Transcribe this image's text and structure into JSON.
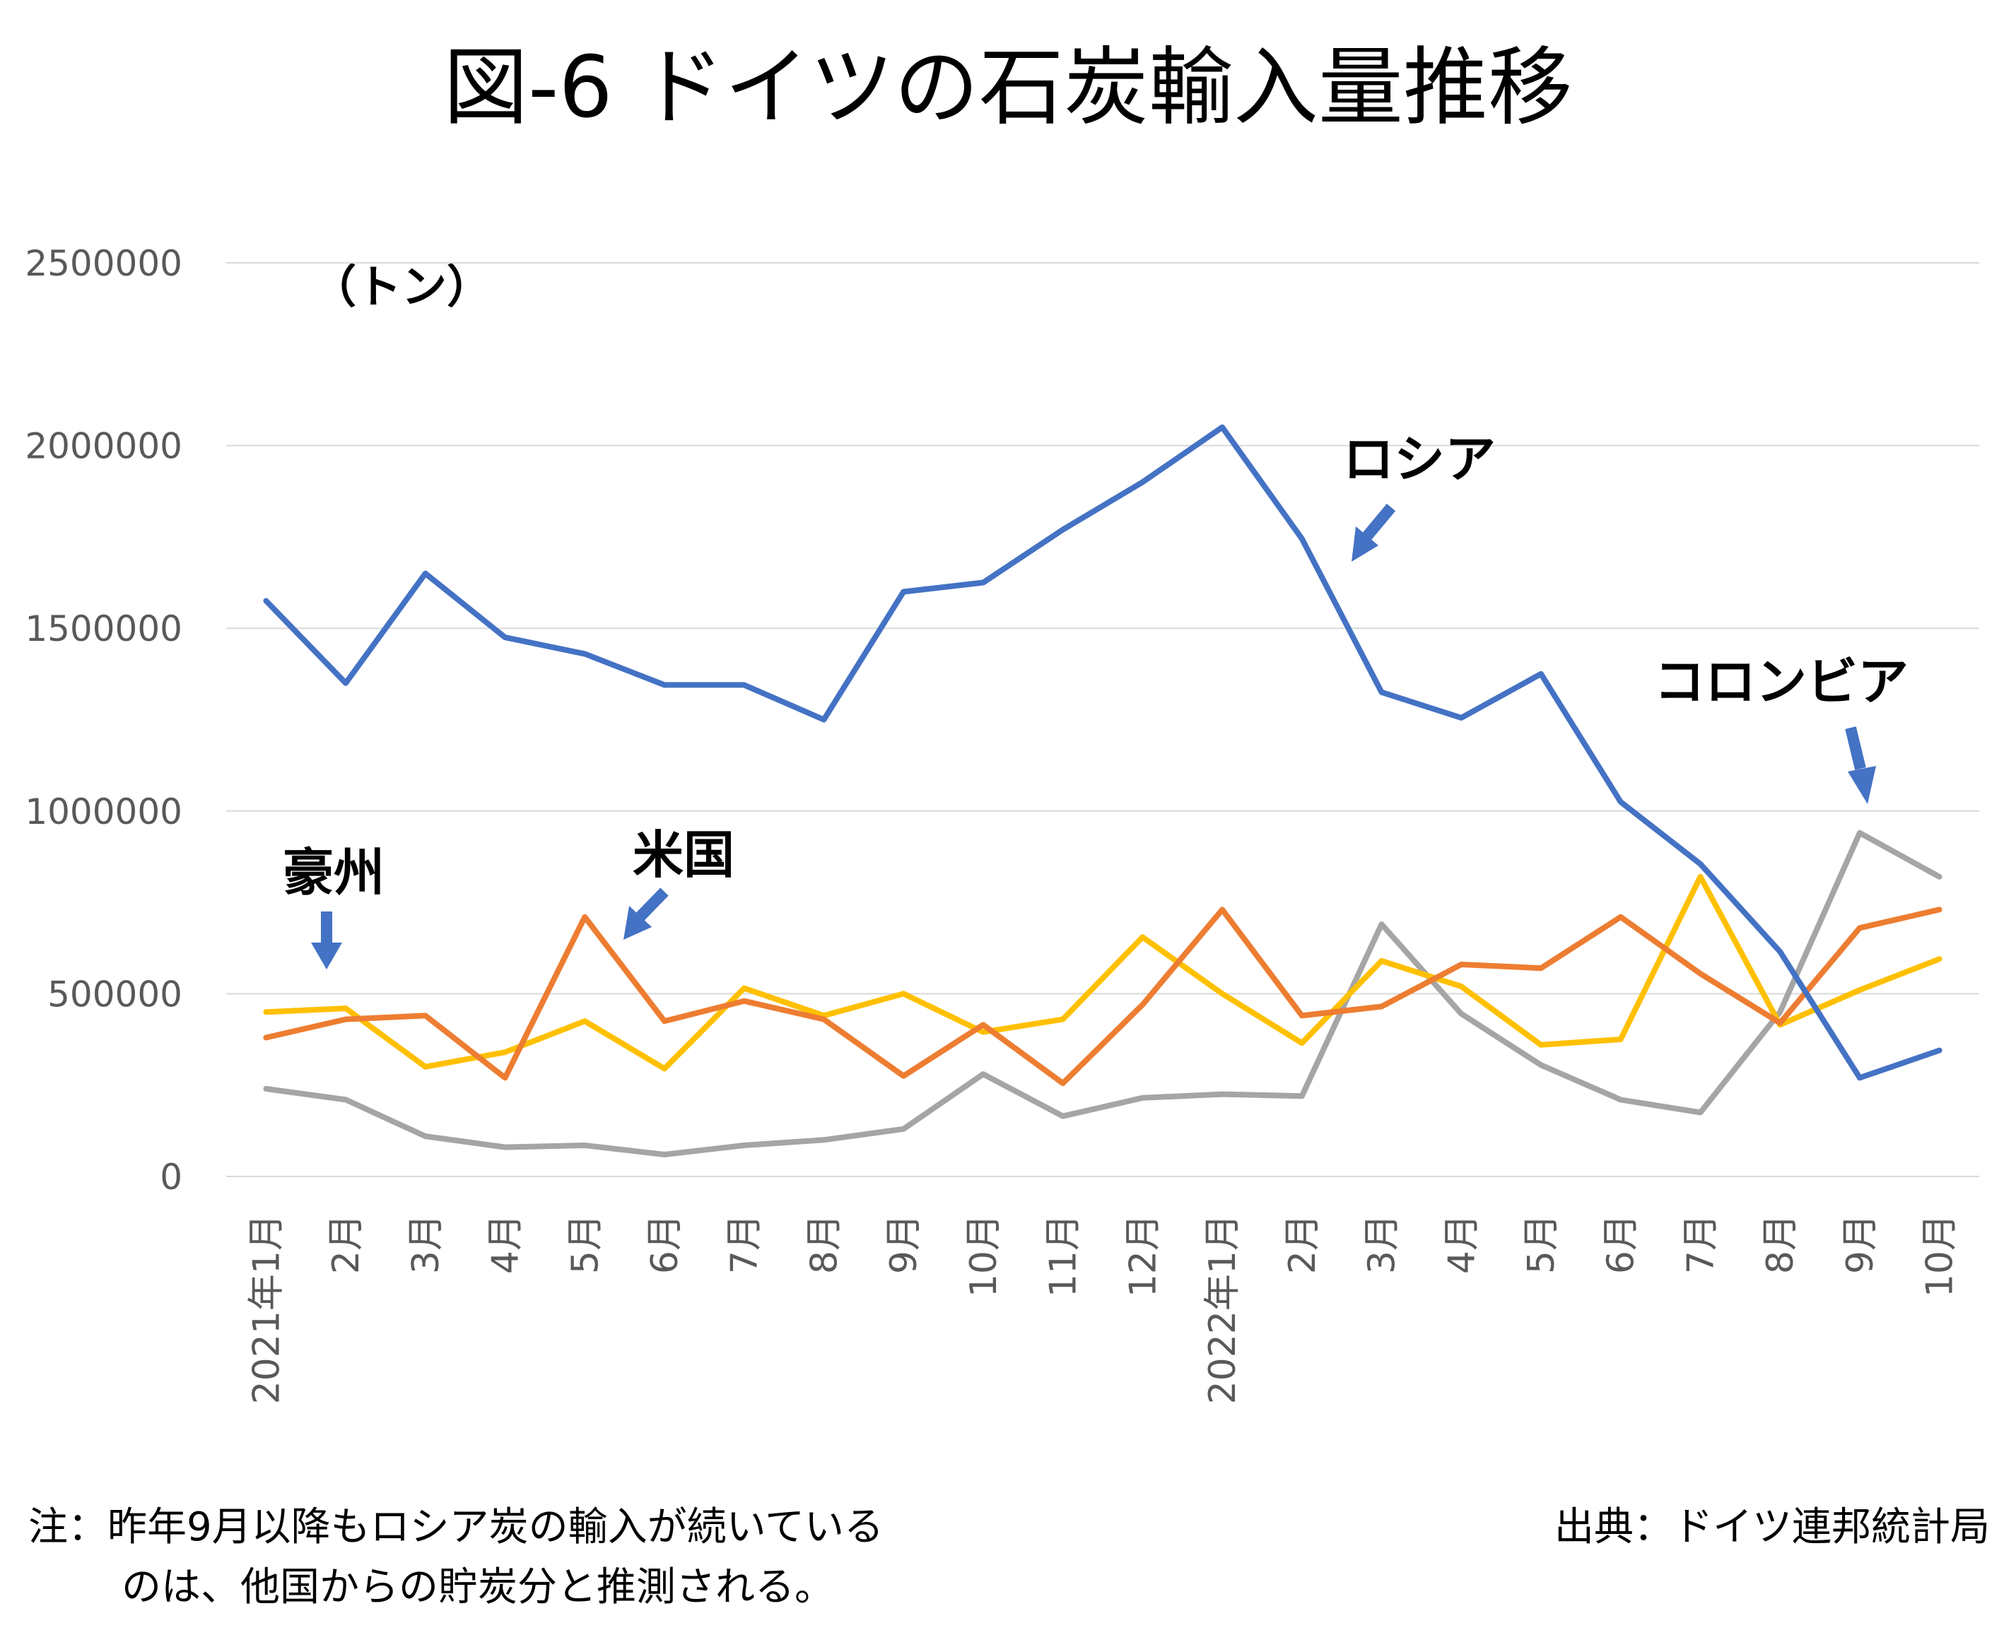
{
  "chart_data": {
    "type": "line",
    "title": "図-6 ドイツの石炭輸入量推移",
    "unit_label": "（トン）",
    "ylim": [
      0,
      2500000
    ],
    "yticks": [
      "2500000",
      "2000000",
      "1500000",
      "1000000",
      "500000",
      "0"
    ],
    "ytick_values": [
      2500000,
      2000000,
      1500000,
      1000000,
      500000,
      0
    ],
    "grid": true,
    "categories": [
      "2021年1月",
      "2月",
      "3月",
      "4月",
      "5月",
      "6月",
      "7月",
      "8月",
      "9月",
      "10月",
      "11月",
      "12月",
      "2022年1月",
      "2月",
      "3月",
      "4月",
      "5月",
      "6月",
      "7月",
      "8月",
      "9月",
      "10月"
    ],
    "series": [
      {
        "name": "ロシア",
        "color": "#4472c4",
        "values": [
          1575000,
          1350000,
          1650000,
          1475000,
          1430000,
          1345000,
          1345000,
          1250000,
          1600000,
          1625000,
          1770000,
          1900000,
          2050000,
          1745000,
          1325000,
          1255000,
          1375000,
          1025000,
          855000,
          615000,
          270000,
          345000
        ]
      },
      {
        "name": "米国",
        "color": "#ed7d31",
        "values": [
          380000,
          430000,
          440000,
          270000,
          710000,
          425000,
          480000,
          430000,
          275000,
          415000,
          255000,
          470000,
          730000,
          440000,
          465000,
          580000,
          570000,
          710000,
          555000,
          420000,
          680000,
          730000
        ]
      },
      {
        "name": "豪州",
        "color": "#ffc000",
        "values": [
          450000,
          460000,
          300000,
          340000,
          425000,
          295000,
          515000,
          440000,
          500000,
          395000,
          430000,
          655000,
          500000,
          365000,
          590000,
          520000,
          360000,
          375000,
          820000,
          415000,
          510000,
          595000
        ]
      },
      {
        "name": "コロンビア",
        "color": "#a5a5a5",
        "values": [
          240000,
          210000,
          110000,
          80000,
          85000,
          60000,
          85000,
          100000,
          130000,
          280000,
          165000,
          215000,
          225000,
          220000,
          690000,
          445000,
          305000,
          210000,
          175000,
          450000,
          940000,
          820000
        ]
      }
    ],
    "annotations": [
      {
        "label": "ロシア",
        "series": "ロシア"
      },
      {
        "label": "米国",
        "series": "米国"
      },
      {
        "label": "豪州",
        "series": "豪州"
      },
      {
        "label": "コロンビア",
        "series": "コロンビア"
      }
    ],
    "arrow_color": "#4472c4"
  },
  "notes": {
    "line1": "注：昨年9月以降もロシア炭の輸入が続いている",
    "line2": "のは、他国からの貯炭分と推測される。",
    "source": "出典：ドイツ連邦統計局"
  },
  "colors": {
    "grid": "#d9d9d9",
    "tick_text": "#595959"
  }
}
